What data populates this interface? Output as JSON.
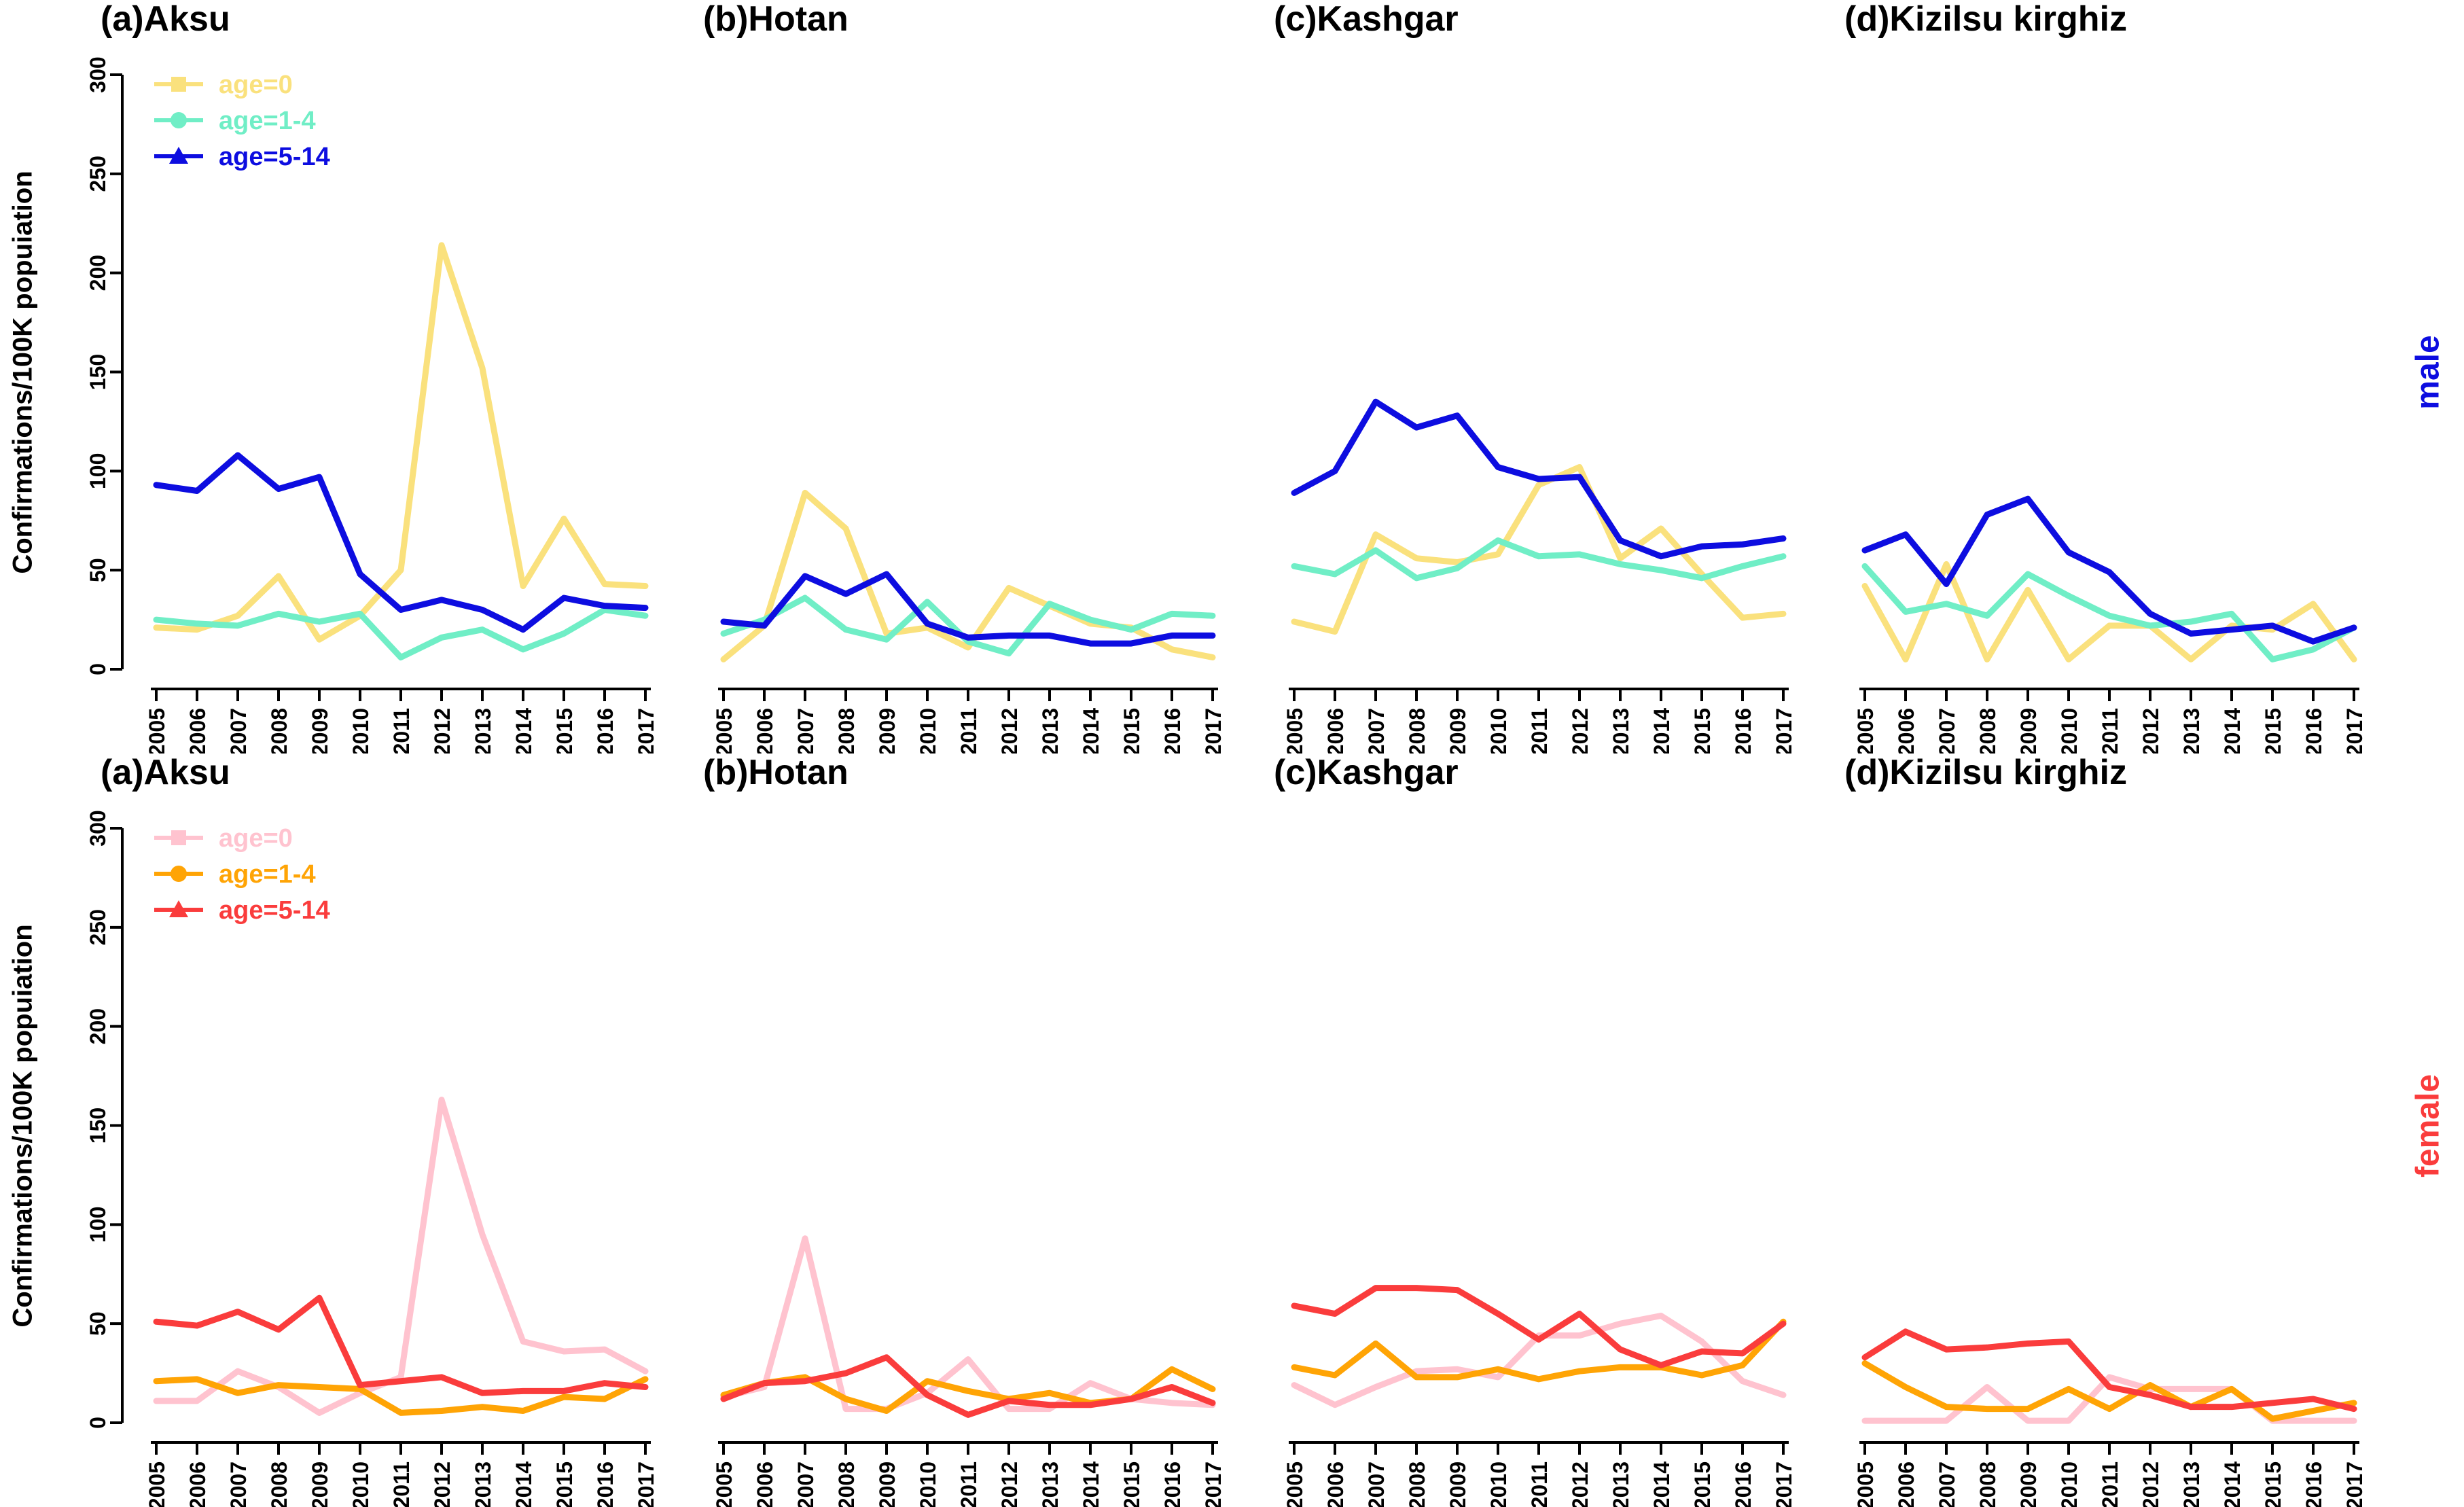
{
  "layout": {
    "ylabel": "Confirmations/100K popuiation",
    "yticks": [
      "0",
      "50",
      "100",
      "150",
      "200",
      "250",
      "300"
    ],
    "ymax": 300,
    "years": [
      "2005",
      "2006",
      "2007",
      "2008",
      "2009",
      "2010",
      "2011",
      "2012",
      "2013",
      "2014",
      "2015",
      "2016",
      "2017"
    ],
    "row_labels": [
      {
        "text": "male",
        "color": "#0D0DE0"
      },
      {
        "text": "female",
        "color": "#FA3C3C"
      }
    ],
    "colors": {
      "axis": "#000000",
      "male_age0": "#FAE17D",
      "male_age1_4": "#70EEC6",
      "male_age5_14": "#0D0DE0",
      "female_age0": "#FFC3CF",
      "female_age1_4": "#FFA405",
      "female_age5_14": "#FA3C3C"
    }
  },
  "chart_data": [
    {
      "type": "line",
      "title": "(a)Aksu",
      "sex": "male",
      "legend": true,
      "xlabel": "",
      "ylabel": "Confirmations/100K popuiation",
      "ylim": [
        0,
        300
      ],
      "x": [
        2005,
        2006,
        2007,
        2008,
        2009,
        2010,
        2011,
        2012,
        2013,
        2014,
        2015,
        2016,
        2017
      ],
      "series": [
        {
          "name": "age=0",
          "color": "#FAE17D",
          "marker": "square",
          "values": [
            21,
            20,
            27,
            47,
            15,
            27,
            50,
            214,
            152,
            42,
            76,
            43,
            42
          ]
        },
        {
          "name": "age=1-4",
          "color": "#70EEC6",
          "marker": "circle",
          "values": [
            25,
            23,
            22,
            28,
            24,
            28,
            6,
            16,
            20,
            10,
            18,
            30,
            27
          ]
        },
        {
          "name": "age=5-14",
          "color": "#0D0DE0",
          "marker": "triangle",
          "values": [
            93,
            90,
            108,
            91,
            97,
            48,
            30,
            35,
            30,
            20,
            36,
            32,
            31
          ]
        }
      ]
    },
    {
      "type": "line",
      "title": "(b)Hotan",
      "sex": "male",
      "legend": false,
      "xlabel": "",
      "ylabel": "",
      "ylim": [
        0,
        300
      ],
      "x": [
        2005,
        2006,
        2007,
        2008,
        2009,
        2010,
        2011,
        2012,
        2013,
        2014,
        2015,
        2016,
        2017
      ],
      "series": [
        {
          "name": "age=0",
          "color": "#FAE17D",
          "marker": "square",
          "values": [
            5,
            22,
            89,
            71,
            18,
            21,
            11,
            41,
            32,
            23,
            21,
            10,
            6
          ]
        },
        {
          "name": "age=1-4",
          "color": "#70EEC6",
          "marker": "circle",
          "values": [
            18,
            25,
            36,
            20,
            15,
            34,
            14,
            8,
            33,
            25,
            20,
            28,
            27
          ]
        },
        {
          "name": "age=5-14",
          "color": "#0D0DE0",
          "marker": "triangle",
          "values": [
            24,
            22,
            47,
            38,
            48,
            23,
            16,
            17,
            17,
            13,
            13,
            17,
            17
          ]
        }
      ]
    },
    {
      "type": "line",
      "title": "(c)Kashgar",
      "sex": "male",
      "legend": false,
      "xlabel": "",
      "ylabel": "",
      "ylim": [
        0,
        300
      ],
      "x": [
        2005,
        2006,
        2007,
        2008,
        2009,
        2010,
        2011,
        2012,
        2013,
        2014,
        2015,
        2016,
        2017
      ],
      "series": [
        {
          "name": "age=0",
          "color": "#FAE17D",
          "marker": "square",
          "values": [
            24,
            19,
            68,
            56,
            54,
            58,
            93,
            102,
            56,
            71,
            48,
            26,
            28
          ]
        },
        {
          "name": "age=1-4",
          "color": "#70EEC6",
          "marker": "circle",
          "values": [
            52,
            48,
            60,
            46,
            51,
            65,
            57,
            58,
            53,
            50,
            46,
            52,
            57
          ]
        },
        {
          "name": "age=5-14",
          "color": "#0D0DE0",
          "marker": "triangle",
          "values": [
            89,
            100,
            135,
            122,
            128,
            102,
            96,
            97,
            65,
            57,
            62,
            63,
            66
          ]
        }
      ]
    },
    {
      "type": "line",
      "title": "(d)Kizilsu kirghiz",
      "sex": "male",
      "legend": false,
      "xlabel": "",
      "ylabel": "",
      "ylim": [
        0,
        300
      ],
      "x": [
        2005,
        2006,
        2007,
        2008,
        2009,
        2010,
        2011,
        2012,
        2013,
        2014,
        2015,
        2016,
        2017
      ],
      "series": [
        {
          "name": "age=0",
          "color": "#FAE17D",
          "marker": "square",
          "values": [
            42,
            5,
            53,
            5,
            40,
            5,
            22,
            22,
            5,
            22,
            20,
            33,
            5
          ]
        },
        {
          "name": "age=1-4",
          "color": "#70EEC6",
          "marker": "circle",
          "values": [
            52,
            29,
            33,
            27,
            48,
            37,
            27,
            22,
            24,
            28,
            5,
            10,
            21
          ]
        },
        {
          "name": "age=5-14",
          "color": "#0D0DE0",
          "marker": "triangle",
          "values": [
            60,
            68,
            43,
            78,
            86,
            59,
            49,
            28,
            18,
            20,
            22,
            14,
            21
          ]
        }
      ]
    },
    {
      "type": "line",
      "title": "(a)Aksu",
      "sex": "female",
      "legend": true,
      "xlabel": "",
      "ylabel": "Confirmations/100K popuiation",
      "ylim": [
        0,
        300
      ],
      "x": [
        2005,
        2006,
        2007,
        2008,
        2009,
        2010,
        2011,
        2012,
        2013,
        2014,
        2015,
        2016,
        2017
      ],
      "series": [
        {
          "name": "age=0",
          "color": "#FFC3CF",
          "marker": "square",
          "values": [
            11,
            11,
            26,
            18,
            5,
            15,
            23,
            163,
            95,
            41,
            36,
            37,
            26
          ]
        },
        {
          "name": "age=1-4",
          "color": "#FFA405",
          "marker": "circle",
          "values": [
            21,
            22,
            15,
            19,
            18,
            17,
            5,
            6,
            8,
            6,
            13,
            12,
            22
          ]
        },
        {
          "name": "age=5-14",
          "color": "#FA3C3C",
          "marker": "triangle",
          "values": [
            51,
            49,
            56,
            47,
            63,
            19,
            21,
            23,
            15,
            16,
            16,
            20,
            18
          ]
        }
      ]
    },
    {
      "type": "line",
      "title": "(b)Hotan",
      "sex": "female",
      "legend": false,
      "xlabel": "",
      "ylabel": "",
      "ylim": [
        0,
        300
      ],
      "x": [
        2005,
        2006,
        2007,
        2008,
        2009,
        2010,
        2011,
        2012,
        2013,
        2014,
        2015,
        2016,
        2017
      ],
      "series": [
        {
          "name": "age=0",
          "color": "#FFC3CF",
          "marker": "square",
          "values": [
            13,
            18,
            93,
            7,
            7,
            15,
            32,
            7,
            7,
            20,
            12,
            10,
            9
          ]
        },
        {
          "name": "age=1-4",
          "color": "#FFA405",
          "marker": "circle",
          "values": [
            14,
            20,
            23,
            12,
            6,
            21,
            16,
            12,
            15,
            10,
            12,
            27,
            17
          ]
        },
        {
          "name": "age=5-14",
          "color": "#FA3C3C",
          "marker": "triangle",
          "values": [
            12,
            20,
            21,
            25,
            33,
            14,
            4,
            11,
            9,
            9,
            12,
            18,
            10
          ]
        }
      ]
    },
    {
      "type": "line",
      "title": "(c)Kashgar",
      "sex": "female",
      "legend": false,
      "xlabel": "",
      "ylabel": "",
      "ylim": [
        0,
        300
      ],
      "x": [
        2005,
        2006,
        2007,
        2008,
        2009,
        2010,
        2011,
        2012,
        2013,
        2014,
        2015,
        2016,
        2017
      ],
      "series": [
        {
          "name": "age=0",
          "color": "#FFC3CF",
          "marker": "square",
          "values": [
            19,
            9,
            18,
            26,
            27,
            23,
            44,
            44,
            50,
            54,
            41,
            21,
            14
          ]
        },
        {
          "name": "age=1-4",
          "color": "#FFA405",
          "marker": "circle",
          "values": [
            28,
            24,
            40,
            23,
            23,
            27,
            22,
            26,
            28,
            28,
            24,
            29,
            51
          ]
        },
        {
          "name": "age=5-14",
          "color": "#FA3C3C",
          "marker": "triangle",
          "values": [
            59,
            55,
            68,
            68,
            67,
            55,
            42,
            55,
            37,
            29,
            36,
            35,
            50
          ]
        }
      ]
    },
    {
      "type": "line",
      "title": "(d)Kizilsu kirghiz",
      "sex": "female",
      "legend": false,
      "xlabel": "",
      "ylabel": "",
      "ylim": [
        0,
        300
      ],
      "x": [
        2005,
        2006,
        2007,
        2008,
        2009,
        2010,
        2011,
        2012,
        2013,
        2014,
        2015,
        2016,
        2017
      ],
      "series": [
        {
          "name": "age=0",
          "color": "#FFC3CF",
          "marker": "square",
          "values": [
            1,
            1,
            1,
            18,
            1,
            1,
            23,
            17,
            17,
            17,
            1,
            1,
            1
          ]
        },
        {
          "name": "age=1-4",
          "color": "#FFA405",
          "marker": "circle",
          "values": [
            30,
            18,
            8,
            7,
            7,
            17,
            7,
            19,
            8,
            17,
            2,
            6,
            10
          ]
        },
        {
          "name": "age=5-14",
          "color": "#FA3C3C",
          "marker": "triangle",
          "values": [
            33,
            46,
            37,
            38,
            40,
            41,
            18,
            14,
            8,
            8,
            10,
            12,
            7
          ]
        }
      ]
    }
  ]
}
